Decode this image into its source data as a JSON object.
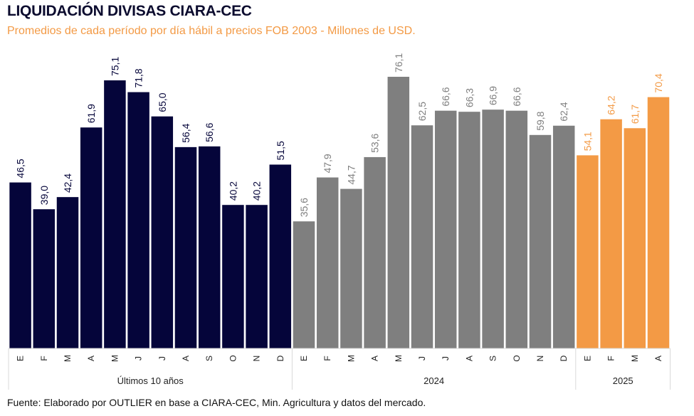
{
  "title": "LIQUIDACIÓN DIVISAS CIARA-CEC",
  "subtitle": "Promedios de cada período por día hábil a precios FOB 2003 - Millones de USD.",
  "source": "Fuente: Elaborado por OUTLIER en base a CIARA-CEC, Min. Agricultura y datos del mercado.",
  "chart_data": {
    "type": "bar",
    "ylim": [
      0,
      80
    ],
    "grid": false,
    "value_format": "decimal-comma-1",
    "groups": [
      {
        "name": "Últimos 10 años",
        "color": "#05053a",
        "label_color": "#05053a",
        "categories": [
          "E",
          "F",
          "M",
          "A",
          "M",
          "J",
          "J",
          "A",
          "S",
          "O",
          "N",
          "D"
        ],
        "values": [
          46.5,
          39.0,
          42.4,
          61.9,
          75.1,
          71.8,
          65.0,
          56.4,
          56.6,
          40.2,
          40.2,
          51.5
        ],
        "labels": [
          "46,5",
          "39,0",
          "42,4",
          "61,9",
          "75,1",
          "71,8",
          "65,0",
          "56,4",
          "56,6",
          "40,2",
          "40,2",
          "51,5"
        ]
      },
      {
        "name": "2024",
        "color": "#7f7f7f",
        "label_color": "#7f7f7f",
        "categories": [
          "E",
          "F",
          "M",
          "A",
          "M",
          "J",
          "J",
          "A",
          "S",
          "O",
          "N",
          "D"
        ],
        "values": [
          35.6,
          47.9,
          44.7,
          53.6,
          76.1,
          62.5,
          66.6,
          66.3,
          66.9,
          66.6,
          59.8,
          62.4
        ],
        "labels": [
          "35,6",
          "47,9",
          "44,7",
          "53,6",
          "76,1",
          "62,5",
          "66,6",
          "66,3",
          "66,9",
          "66,6",
          "59,8",
          "62,4"
        ]
      },
      {
        "name": "2025",
        "color": "#f39a45",
        "label_color": "#f39a45",
        "categories": [
          "E",
          "F",
          "M",
          "A"
        ],
        "values": [
          54.1,
          64.2,
          61.7,
          70.4
        ],
        "labels": [
          "54,1",
          "64,2",
          "61,7",
          "70,4"
        ]
      }
    ]
  }
}
